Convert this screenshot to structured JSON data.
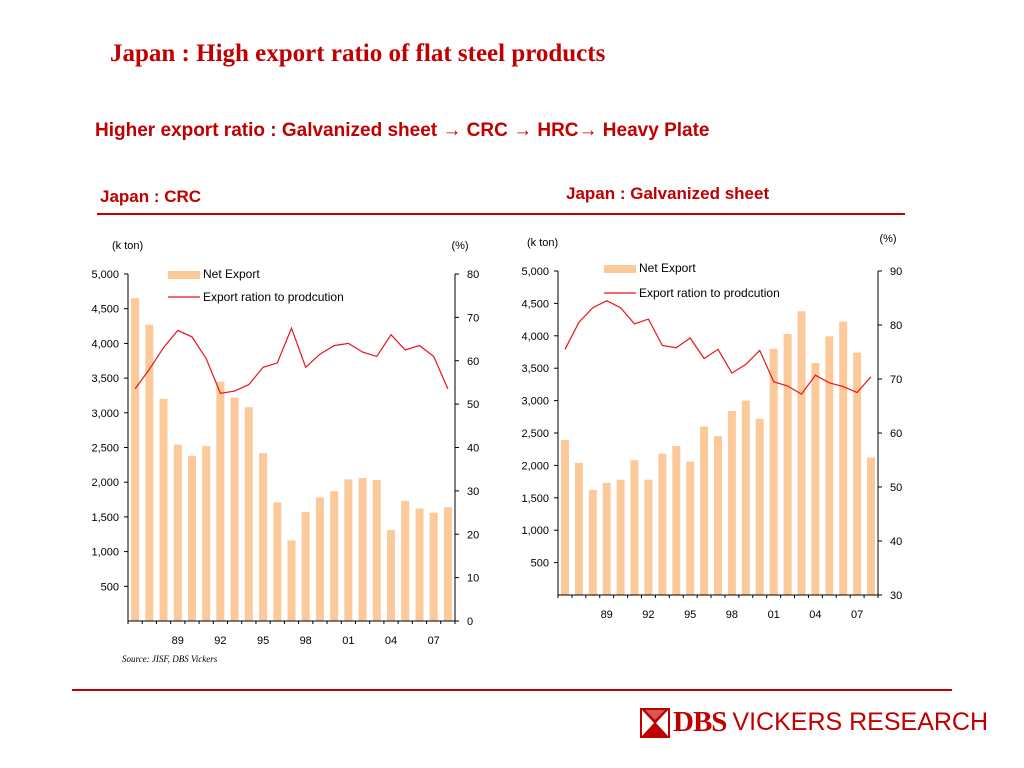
{
  "slide": {
    "title": "Japan : High export ratio of flat steel products",
    "subtitle": "Higher export  ratio : Galvanized sheet → CRC → HRC→  Heavy Plate",
    "source": "Source: JISF, DBS Vickers"
  },
  "logo": {
    "brand": "DBS",
    "suffix": "VICKERS RESEARCH"
  },
  "colors": {
    "accent": "#c00000",
    "bar": "#fcc99b",
    "line": "#e8141b"
  },
  "chart_data": [
    {
      "type": "bar",
      "title": "Japan : CRC",
      "left_axis_unit": "(k ton)",
      "right_axis_unit": "(%)",
      "x_tick_labels": [
        "89",
        "92",
        "95",
        "98",
        "01",
        "04",
        "07"
      ],
      "left_ylim": [
        0,
        5000
      ],
      "left_ticks": [
        500,
        1000,
        1500,
        2000,
        2500,
        3000,
        3500,
        4000,
        4500,
        5000
      ],
      "right_ylim": [
        0,
        80
      ],
      "right_ticks": [
        0,
        10,
        20,
        30,
        40,
        50,
        60,
        70,
        80
      ],
      "grid": false,
      "legend_position": "top-center",
      "x": [
        1986,
        1987,
        1988,
        1989,
        1990,
        1991,
        1992,
        1993,
        1994,
        1995,
        1996,
        1997,
        1998,
        1999,
        2000,
        2001,
        2002,
        2003,
        2004,
        2005,
        2006,
        2007,
        2008
      ],
      "series": [
        {
          "name": "Net Export",
          "kind": "bar",
          "axis": "left",
          "values": [
            4650,
            4270,
            3200,
            2540,
            2380,
            2520,
            3450,
            3220,
            3080,
            2420,
            1710,
            1160,
            1570,
            1780,
            1870,
            2040,
            2060,
            2030,
            1310,
            1730,
            1620,
            1560,
            1640
          ]
        },
        {
          "name": "Export ration to prodcution",
          "kind": "line",
          "axis": "right",
          "values": [
            53.5,
            58,
            63,
            67,
            65.5,
            60.5,
            52.5,
            53,
            54.5,
            58.5,
            59.5,
            67.5,
            58.5,
            61.5,
            63.5,
            64,
            62,
            61,
            66,
            62.5,
            63.5,
            61,
            53.5
          ]
        }
      ]
    },
    {
      "type": "bar",
      "title": "Japan : Galvanized sheet",
      "left_axis_unit": "(k ton)",
      "right_axis_unit": "(%)",
      "x_tick_labels": [
        "89",
        "92",
        "95",
        "98",
        "01",
        "04",
        "07"
      ],
      "left_ylim": [
        0,
        5000
      ],
      "left_ticks": [
        500,
        1000,
        1500,
        2000,
        2500,
        3000,
        3500,
        4000,
        4500,
        5000
      ],
      "right_ylim": [
        30,
        90
      ],
      "right_ticks": [
        30,
        40,
        50,
        60,
        70,
        80,
        90
      ],
      "grid": false,
      "legend_position": "top-center",
      "x": [
        1986,
        1987,
        1988,
        1989,
        1990,
        1991,
        1992,
        1993,
        1994,
        1995,
        1996,
        1997,
        1998,
        1999,
        2000,
        2001,
        2002,
        2003,
        2004,
        2005,
        2006,
        2007,
        2008
      ],
      "series": [
        {
          "name": "Net Export",
          "kind": "bar",
          "axis": "left",
          "values": [
            2390,
            2040,
            1620,
            1730,
            1780,
            2080,
            1780,
            2180,
            2300,
            2060,
            2600,
            2450,
            2840,
            3000,
            2720,
            3800,
            4030,
            4380,
            3580,
            3990,
            4220,
            3740,
            2120
          ]
        },
        {
          "name": "Export ration to prodcution",
          "kind": "line",
          "axis": "right",
          "values": [
            75.5,
            80.5,
            83.2,
            84.5,
            83.2,
            80.2,
            81.1,
            76.2,
            75.8,
            77.6,
            73.8,
            75.5,
            71.1,
            72.7,
            75.3,
            69.5,
            68.7,
            67.2,
            70.7,
            69.3,
            68.6,
            67.5,
            70.4
          ]
        }
      ]
    }
  ]
}
